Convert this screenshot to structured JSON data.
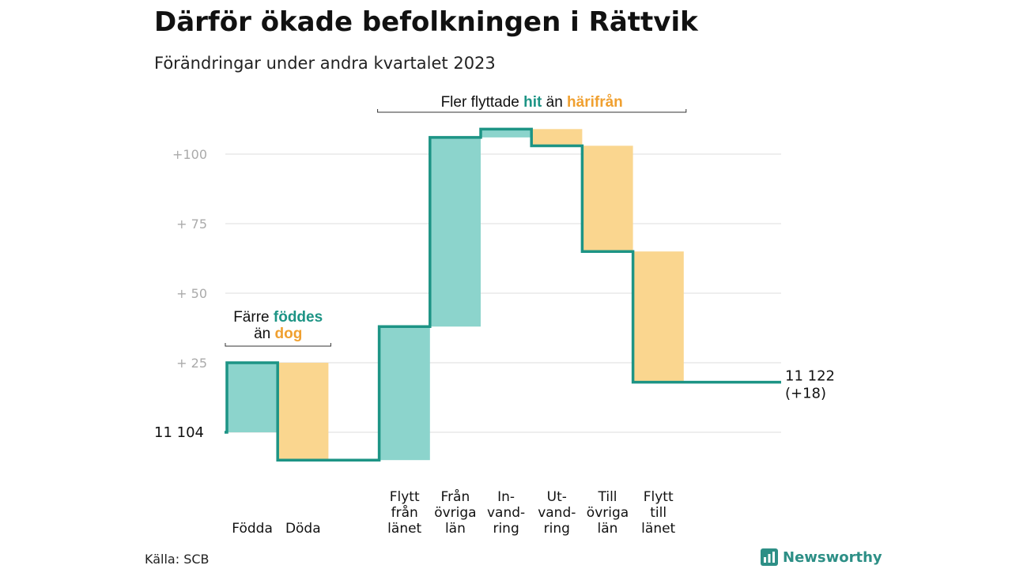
{
  "header": {
    "title": "Därför ökade befolkningen i Rättvik",
    "subtitle": "Förändringar under andra kvartalet 2023"
  },
  "colors": {
    "increase": "#8cd4cc",
    "decrease": "#fad68f",
    "line": "#1d9485",
    "inc_text": "#1d9485",
    "dec_text": "#f0a030",
    "grid": "#dddddd",
    "tick": "#aaaaaa"
  },
  "chart_data": {
    "type": "waterfall",
    "base": 11104,
    "base_label": "11  104",
    "end_label": "11 122",
    "end_change_label": "(+18)",
    "ylim": [
      -10,
      115
    ],
    "yticks": [
      {
        "value": 100,
        "label": "+100"
      },
      {
        "value": 75,
        "label": "+  75"
      },
      {
        "value": 50,
        "label": "+  50"
      },
      {
        "value": 25,
        "label": "+  25"
      },
      {
        "value": 0,
        "label": ""
      }
    ],
    "steps": [
      {
        "label": [
          "Födda"
        ],
        "change": 25,
        "kind": "in",
        "slot": 0
      },
      {
        "label": [
          "Döda"
        ],
        "change": -35,
        "kind": "out",
        "slot": 1
      },
      {
        "label": [
          "Flytt",
          "från",
          "länet"
        ],
        "change": 48,
        "kind": "in",
        "slot": 3
      },
      {
        "label": [
          "Från",
          "övriga",
          "län"
        ],
        "change": 68,
        "kind": "in",
        "slot": 4
      },
      {
        "label": [
          "In-",
          "vand-",
          "ring"
        ],
        "change": 3,
        "kind": "in",
        "slot": 5
      },
      {
        "label": [
          "Ut-",
          "vand-",
          "ring"
        ],
        "change": -6,
        "kind": "out",
        "slot": 6
      },
      {
        "label": [
          "Till",
          "övriga",
          "län"
        ],
        "change": -38,
        "kind": "out",
        "slot": 7
      },
      {
        "label": [
          "Flytt",
          "till",
          "länet"
        ],
        "change": -47,
        "kind": "out",
        "slot": 8
      }
    ],
    "annotations": [
      {
        "prefix": "Färre",
        "inc_word": "föddes",
        "middle": "än",
        "dec_word": "dog",
        "from_slot": 0,
        "to_slot": 1,
        "layout": "stacked"
      },
      {
        "prefix": "Fler flyttade",
        "inc_word": "hit",
        "middle": "än",
        "dec_word": "härifrån",
        "from_slot": 3,
        "to_slot": 8,
        "layout": "inline"
      }
    ]
  },
  "footer": {
    "source": "Källa: SCB",
    "logo_text": "Newsworthy",
    "logo_icon": "bar-chart-logo-icon"
  }
}
